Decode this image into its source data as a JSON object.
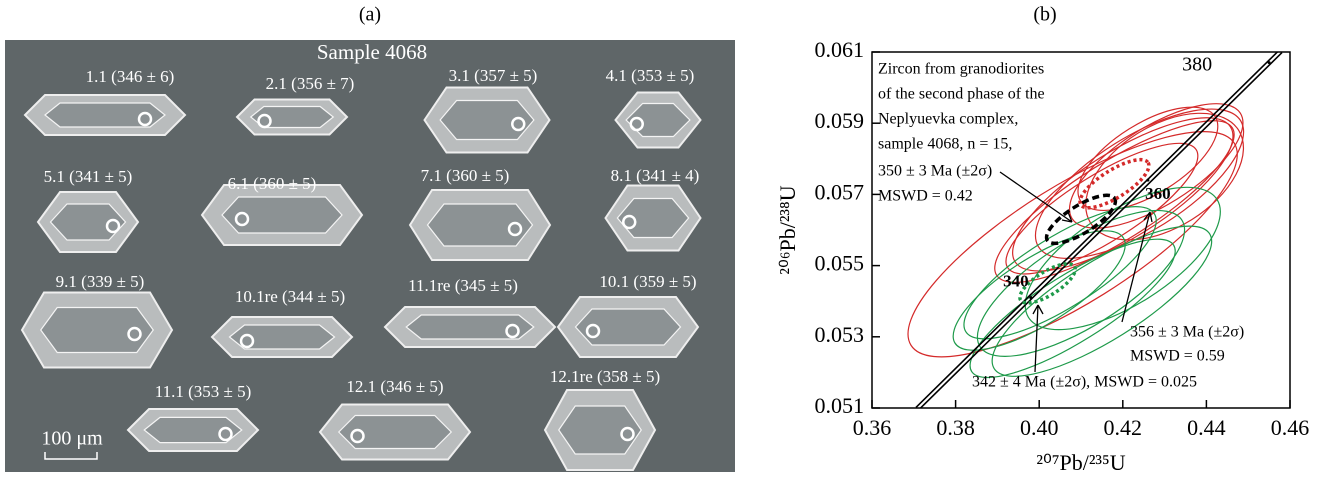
{
  "panel_a": {
    "label": "(a)",
    "sample": "Sample 4068",
    "scale_bar": "100 μm",
    "grains": [
      "1.1 (346 ± 6)",
      "2.1 (356 ± 7)",
      "3.1 (357 ± 5)",
      "4.1 (353 ± 5)",
      "5.1 (341 ± 5)",
      "6.1 (360 ± 5)",
      "7.1 (360 ± 5)",
      "8.1 (341 ± 4)",
      "9.1 (339 ± 5)",
      "10.1re (344 ± 5)",
      "11.1re (345 ± 5)",
      "10.1 (359 ± 5)",
      "11.1 (353 ± 5)",
      "12.1 (346 ± 5)",
      "12.1re (358 ± 5)"
    ]
  },
  "chart_data": {
    "type": "concordia",
    "panel_label": "(b)",
    "x_label": "²⁰⁷Pb/²³⁵U",
    "y_label": "²⁰⁶Pb/²³⁸U",
    "xlim": [
      0.36,
      0.46
    ],
    "ylim": [
      0.051,
      0.061
    ],
    "xticks": [
      0.36,
      0.38,
      {
        "value": 0.4,
        "label": "0.40"
      },
      0.42,
      0.44,
      0.46
    ],
    "yticks": [
      0.051,
      0.053,
      0.055,
      0.057,
      0.059,
      0.061
    ],
    "concordia": {
      "x": [
        0.371,
        0.4576
      ],
      "y": [
        0.051,
        0.061
      ],
      "color": "#000000"
    },
    "concordia_ages": {
      "labels": [
        340,
        360,
        380
      ],
      "x": [
        0.398,
        0.426,
        0.455
      ],
      "y": [
        0.0541,
        0.0574,
        0.0607
      ]
    },
    "ellipse_groups": [
      {
        "color": "#d42a2a",
        "ellipses": [
          {
            "x": 0.408,
            "y": 0.0556,
            "sx": 0.048,
            "sy": 0.003
          },
          {
            "x": 0.424,
            "y": 0.0573,
            "sx": 0.03,
            "sy": 0.0024
          },
          {
            "x": 0.428,
            "y": 0.0578,
            "sx": 0.025,
            "sy": 0.002
          },
          {
            "x": 0.42,
            "y": 0.057,
            "sx": 0.032,
            "sy": 0.0022
          },
          {
            "x": 0.43,
            "y": 0.0575,
            "sx": 0.022,
            "sy": 0.0026
          },
          {
            "x": 0.418,
            "y": 0.0568,
            "sx": 0.035,
            "sy": 0.002
          },
          {
            "x": 0.426,
            "y": 0.058,
            "sx": 0.02,
            "sy": 0.0018
          },
          {
            "x": 0.415,
            "y": 0.0566,
            "sx": 0.028,
            "sy": 0.0017
          }
        ]
      },
      {
        "color": "#1e9a4a",
        "ellipses": [
          {
            "x": 0.41,
            "y": 0.0545,
            "sx": 0.03,
            "sy": 0.0022
          },
          {
            "x": 0.405,
            "y": 0.0548,
            "sx": 0.028,
            "sy": 0.0018
          },
          {
            "x": 0.415,
            "y": 0.054,
            "sx": 0.032,
            "sy": 0.002
          },
          {
            "x": 0.4,
            "y": 0.0543,
            "sx": 0.025,
            "sy": 0.0017
          },
          {
            "x": 0.42,
            "y": 0.0552,
            "sx": 0.028,
            "sy": 0.0024
          },
          {
            "x": 0.408,
            "y": 0.0538,
            "sx": 0.03,
            "sy": 0.0017
          }
        ]
      }
    ],
    "mean_ellipses": [
      {
        "color": "#000000",
        "x": 0.41,
        "y": 0.0563,
        "sx": 0.01,
        "sy": 0.0007
      },
      {
        "color": "#d42a2a",
        "x": 0.418,
        "y": 0.0573,
        "sx": 0.01,
        "sy": 0.0007
      },
      {
        "color": "#1e9a4a",
        "x": 0.402,
        "y": 0.0545,
        "sx": 0.008,
        "sy": 0.0006
      }
    ],
    "annotations": [
      "Zircon from granodiorites",
      "of the second phase of the",
      "Neplyuevka complex,",
      "sample 4068, n = 15,",
      "350 ± 3 Ma (±2σ)",
      "MSWD = 0.42",
      "356 ± 3 Ma (±2σ)",
      "MSWD = 0.59",
      "342 ± 4 Ma (±2σ), MSWD = 0.025"
    ]
  }
}
